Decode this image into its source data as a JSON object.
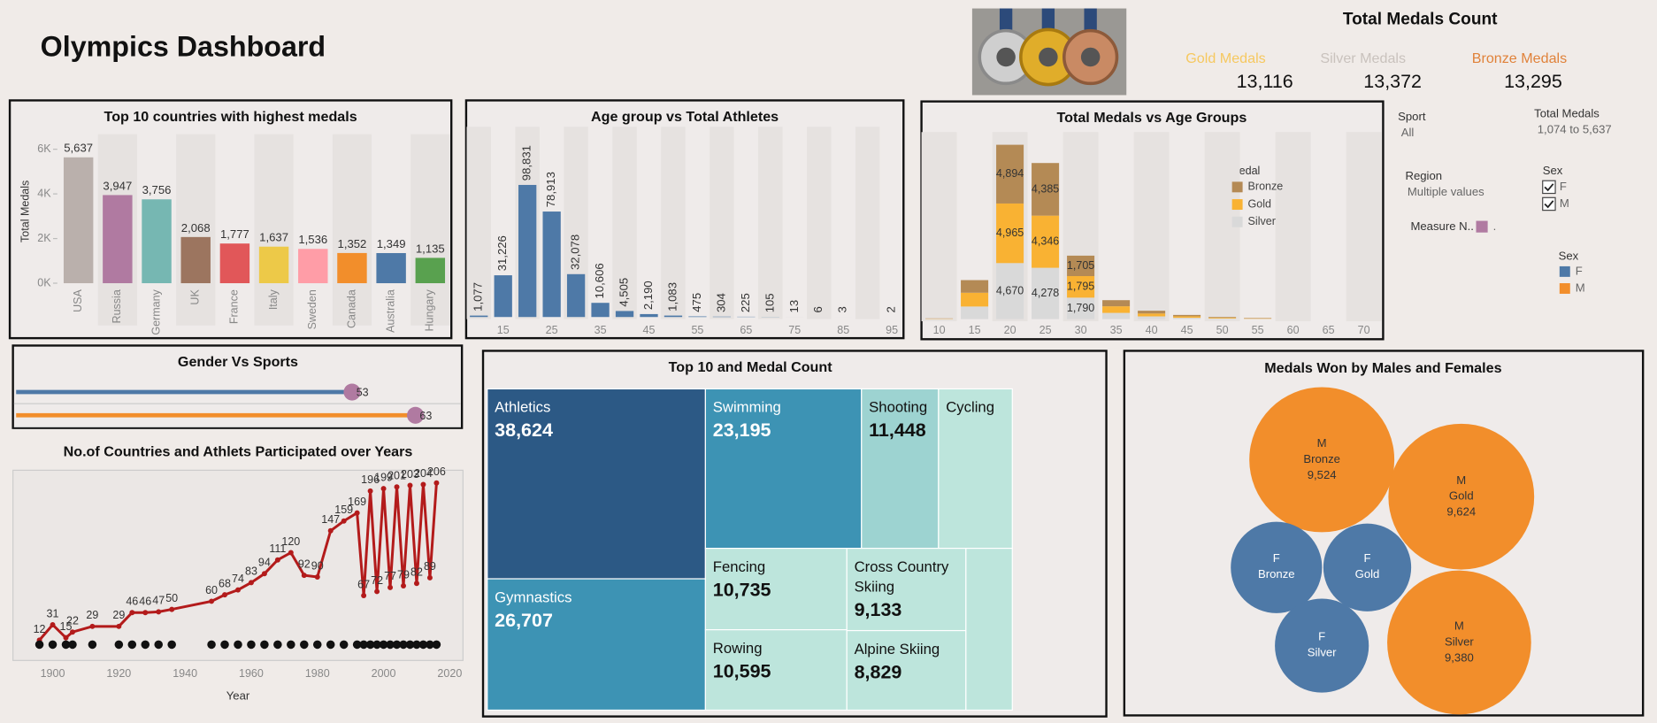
{
  "title": "Olympics Dashboard",
  "kpis": {
    "title": "Total Medals Count",
    "items": [
      {
        "label": "Gold Medals",
        "value": "13,116",
        "color": "#f6c85f"
      },
      {
        "label": "Silver Medals",
        "value": "13,372",
        "color": "#c9c2bd"
      },
      {
        "label": "Bronze Medals",
        "value": "13,295",
        "color": "#e0823a"
      }
    ]
  },
  "filters": {
    "sport": {
      "label": "Sport",
      "value": "All"
    },
    "total_medals": {
      "label": "Total Medals",
      "value": "1,074 to 5,637"
    },
    "region": {
      "label": "Region",
      "value": "Multiple values"
    },
    "sex_filter": {
      "label": "Sex",
      "options": [
        "F",
        "M"
      ]
    },
    "measure": {
      "label": "Measure N..",
      "value": ".",
      "color": "#b07aa1"
    },
    "sex_legend": {
      "label": "Sex",
      "items": [
        {
          "name": "F",
          "color": "#4e79a7"
        },
        {
          "name": "M",
          "color": "#f28e2b"
        }
      ]
    }
  },
  "chart_data": [
    {
      "type": "bar",
      "title": "Top 10 countries with highest medals",
      "y_label": "Total Medals",
      "categories": [
        "USA",
        "Russia",
        "Germany",
        "UK",
        "France",
        "Italy",
        "Sweden",
        "Canada",
        "Australia",
        "Hungary"
      ],
      "values": [
        5637,
        3947,
        3756,
        2068,
        1777,
        1637,
        1536,
        1352,
        1349,
        1135
      ],
      "value_labels": [
        "5,637",
        "3,947",
        "3,756",
        "2,068",
        "1,777",
        "1,637",
        "1,536",
        "1,352",
        "1,349",
        "1,135"
      ],
      "colors": [
        "#bab0ac",
        "#b07aa1",
        "#76b7b2",
        "#9c755f",
        "#e15759",
        "#edc948",
        "#ff9da7",
        "#f28e2b",
        "#4e79a7",
        "#59a14f"
      ],
      "ylim": [
        0,
        6200
      ],
      "yticks": [
        {
          "value": 0,
          "label": "0K"
        },
        {
          "value": 2000,
          "label": "2K"
        },
        {
          "value": 4000,
          "label": "4K"
        },
        {
          "value": 6000,
          "label": "6K"
        }
      ]
    },
    {
      "type": "bar",
      "title": "Age group vs Total Athletes",
      "x": [
        10,
        15,
        20,
        25,
        30,
        35,
        40,
        45,
        50,
        55,
        60,
        65,
        70,
        75,
        80,
        85,
        95
      ],
      "values": [
        1077,
        31226,
        98831,
        78913,
        32078,
        10606,
        4505,
        2190,
        1083,
        475,
        304,
        225,
        105,
        13,
        6,
        3,
        2
      ],
      "value_labels": [
        "1,077",
        "31,226",
        "98,831",
        "78,913",
        "32,078",
        "10,606",
        "4,505",
        "2,190",
        "1,083",
        "475",
        "304",
        "225",
        "105",
        "13",
        "6",
        "3",
        "2"
      ],
      "color": "#4e79a7",
      "xlim": [
        7.5,
        97.5
      ],
      "xticks": [
        15,
        25,
        35,
        45,
        55,
        65,
        75,
        85,
        95
      ]
    },
    {
      "type": "stacked-bar",
      "title": "Total Medals vs Age Groups",
      "legend_title": "Medal",
      "x": [
        10,
        15,
        20,
        25,
        30,
        35,
        40,
        45,
        50,
        55
      ],
      "series": [
        {
          "name": "Bronze",
          "color": "#b48a55",
          "values": [
            20,
            1050,
            4894,
            4385,
            1705,
            510,
            230,
            115,
            60,
            35
          ],
          "value_labels": [
            null,
            null,
            "4,894",
            "4,385",
            "1,705",
            null,
            null,
            null,
            null,
            null
          ]
        },
        {
          "name": "Gold",
          "color": "#f9b233",
          "values": [
            20,
            1150,
            4965,
            4346,
            1795,
            550,
            240,
            120,
            60,
            35
          ],
          "value_labels": [
            null,
            null,
            "4,965",
            "4,346",
            "1,795",
            null,
            null,
            null,
            null,
            null
          ]
        },
        {
          "name": "Silver",
          "color": "#d9d9d9",
          "values": [
            20,
            1050,
            4670,
            4278,
            1790,
            520,
            230,
            115,
            55,
            30
          ],
          "value_labels": [
            null,
            null,
            "4,670",
            "4,278",
            "1,790",
            null,
            null,
            null,
            null,
            null
          ]
        }
      ],
      "xlim": [
        7.5,
        72.5
      ],
      "xticks": [
        10,
        15,
        20,
        25,
        30,
        35,
        40,
        45,
        50,
        55,
        60,
        65,
        70
      ]
    },
    {
      "type": "lollipop",
      "title": "Gender Vs Sports",
      "values": [
        53,
        63
      ],
      "colors": [
        "#4e79a7",
        "#f28e2b"
      ],
      "marker_color": "#b07aa1"
    },
    {
      "type": "line",
      "title": "No.of Countries and Athlets Participated over Years",
      "x_label": "Year",
      "x": [
        1896,
        1900,
        1904,
        1906,
        1912,
        1920,
        1924,
        1928,
        1932,
        1936,
        1948,
        1952,
        1956,
        1960,
        1964,
        1968,
        1972,
        1976,
        1980,
        1984,
        1988,
        1992,
        1994,
        1996,
        1998,
        2000,
        2002,
        2004,
        2006,
        2008,
        2010,
        2012,
        2014,
        2016
      ],
      "series": [
        {
          "color": "#b31b1b",
          "values": [
            12,
            31,
            15,
            22,
            29,
            29,
            46,
            46,
            47,
            50,
            60,
            68,
            74,
            83,
            94,
            111,
            120,
            92,
            90,
            147,
            159,
            169,
            67,
            196,
            72,
            199,
            77,
            201,
            79,
            203,
            82,
            204,
            89,
            206
          ]
        }
      ],
      "xlim": [
        1888,
        2024
      ],
      "xticks": [
        1900,
        1920,
        1940,
        1960,
        1980,
        2000,
        2020
      ]
    },
    {
      "type": "treemap",
      "title": "Top 10 and  Medal Count",
      "categories": [
        "Athletics",
        "Gymnastics",
        "Swimming",
        "Shooting",
        "Cycling",
        "Fencing",
        "Rowing",
        "Cross Country Skiing",
        "Alpine Skiing",
        null
      ],
      "values": [
        38624,
        26707,
        23195,
        11448,
        10970,
        10735,
        10595,
        9133,
        8829,
        7000
      ],
      "value_labels": [
        "38,624",
        "26,707",
        "23,195",
        "11,448",
        null,
        "10,735",
        "10,595",
        "9,133",
        "8,829",
        null
      ],
      "colors": [
        "#2c5985",
        "#3d93b4",
        "#3d93b4",
        "#9dd3d1",
        "#bde5dc",
        "#bde5dc",
        "#bde5dc",
        "#bde5dc",
        "#bde5dc",
        "#bde5dc"
      ]
    },
    {
      "type": "bubble",
      "title": "Medals Won by Males and Females",
      "sex": [
        "M",
        "M",
        "M",
        "F",
        "F",
        "F"
      ],
      "medal": [
        "Bronze",
        "Gold",
        "Silver",
        "Bronze",
        "Gold",
        "Silver"
      ],
      "values": [
        9524,
        9624,
        9380,
        3771,
        3492,
        3992
      ],
      "value_labels": [
        "9,524",
        "9,624",
        "9,380",
        null,
        null,
        null
      ],
      "colors": [
        "#f28e2b",
        "#f28e2b",
        "#f28e2b",
        "#4e79a7",
        "#4e79a7",
        "#4e79a7"
      ]
    }
  ]
}
